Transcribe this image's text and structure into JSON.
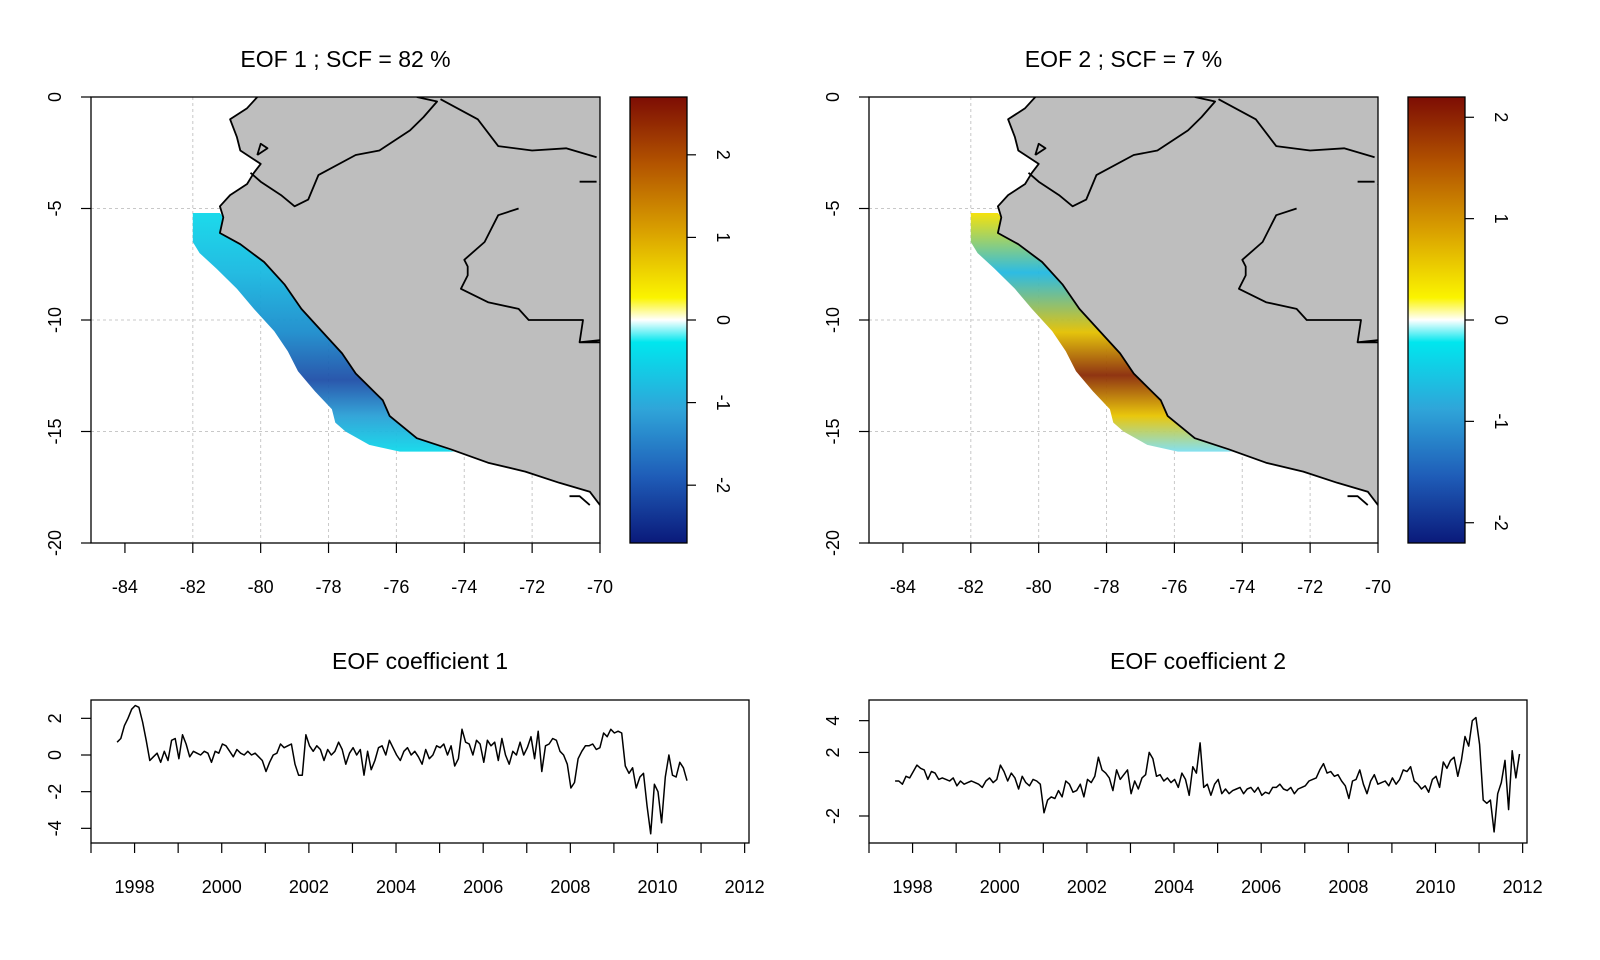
{
  "chart_data": [
    {
      "type": "heatmap",
      "title": "EOF 1 ; SCF =  82 %",
      "xlim": [
        -85,
        -70
      ],
      "ylim": [
        -20,
        0
      ],
      "x_ticks": [
        "-84",
        "-82",
        "-80",
        "-78",
        "-76",
        "-74",
        "-72",
        "-70"
      ],
      "y_ticks": [
        "-20",
        "-15",
        "-10",
        "-5",
        "0"
      ],
      "grid": true,
      "colorbar": {
        "range": [
          -2.7,
          2.7
        ],
        "ticks": [
          "-2",
          "-1",
          "0",
          "1",
          "2"
        ],
        "colors": [
          "#0a1a7a",
          "#1f5db8",
          "#2fa5d9",
          "#00e6ee",
          "#ffffff",
          "#fbf400",
          "#d9a000",
          "#b35400",
          "#7d0d04"
        ]
      },
      "field": {
        "min": -2.3,
        "max": 0,
        "description_values": [
          {
            "lat": -5.5,
            "value": -0.5
          },
          {
            "lat": -8,
            "value": -0.9
          },
          {
            "lat": -10,
            "value": -1.2
          },
          {
            "lat": -12.8,
            "value": -2.2
          },
          {
            "lat": -15.5,
            "value": -0.8
          }
        ]
      }
    },
    {
      "type": "heatmap",
      "title": "EOF 2 ; SCF =  7 %",
      "xlim": [
        -85,
        -70
      ],
      "ylim": [
        -20,
        0
      ],
      "x_ticks": [
        "-84",
        "-82",
        "-80",
        "-78",
        "-76",
        "-74",
        "-72",
        "-70"
      ],
      "y_ticks": [
        "-20",
        "-15",
        "-10",
        "-5",
        "0"
      ],
      "grid": true,
      "colorbar": {
        "range": [
          -2.2,
          2.2
        ],
        "ticks": [
          "-2",
          "-1",
          "0",
          "1",
          "2"
        ],
        "colors": [
          "#0a1a7a",
          "#1f5db8",
          "#2fa5d9",
          "#00e6ee",
          "#ffffff",
          "#fbf400",
          "#d9a000",
          "#b35400",
          "#7d0d04"
        ]
      },
      "field": {
        "min": -1.0,
        "max": 2.0,
        "description_values": [
          {
            "lat": -5.5,
            "value": 0.5
          },
          {
            "lat": -8,
            "value": -0.8
          },
          {
            "lat": -10,
            "value": 0.6
          },
          {
            "lat": -13.5,
            "value": 1.9
          },
          {
            "lat": -15.5,
            "value": 0.4
          }
        ]
      }
    },
    {
      "type": "line",
      "title": "EOF coefficient 1",
      "x_start": 1997.6,
      "x_step": 0.0833,
      "xlim": [
        1997.0,
        2012.1
      ],
      "ylim": [
        -4.8,
        3.0
      ],
      "x_ticks": [
        1998,
        2000,
        2002,
        2004,
        2006,
        2008,
        2010,
        2012
      ],
      "y_ticks": [
        -4,
        -2,
        0,
        2
      ],
      "values": [
        0.7,
        0.9,
        1.6,
        2.0,
        2.5,
        2.7,
        2.6,
        1.8,
        0.8,
        -0.3,
        -0.1,
        0.1,
        -0.4,
        0.2,
        -0.3,
        0.8,
        0.9,
        -0.2,
        1.1,
        0.6,
        -0.1,
        0.2,
        0.1,
        0.0,
        0.2,
        0.1,
        -0.4,
        0.2,
        0.1,
        0.6,
        0.5,
        0.2,
        -0.1,
        0.3,
        0.1,
        0.0,
        0.2,
        0.0,
        0.1,
        -0.1,
        -0.3,
        -0.9,
        -0.4,
        0.0,
        0.1,
        0.6,
        0.4,
        0.5,
        0.6,
        -0.5,
        -1.1,
        -1.1,
        1.1,
        0.5,
        0.2,
        0.5,
        0.3,
        -0.3,
        0.3,
        0.0,
        0.2,
        0.7,
        0.3,
        -0.5,
        0.1,
        0.4,
        0.0,
        0.3,
        -1.1,
        0.2,
        -0.8,
        -0.3,
        0.4,
        0.5,
        0.0,
        0.8,
        0.4,
        0.0,
        -0.3,
        0.2,
        0.4,
        0.0,
        0.2,
        -0.1,
        -0.5,
        0.3,
        -0.2,
        0.0,
        0.5,
        0.4,
        0.6,
        0.0,
        0.5,
        -0.6,
        -0.2,
        1.4,
        0.7,
        0.6,
        0.0,
        0.8,
        0.6,
        -0.4,
        0.8,
        0.5,
        0.7,
        -0.3,
        0.9,
        0.0,
        -0.5,
        0.2,
        0.0,
        0.7,
        0.0,
        0.4,
        1.0,
        -0.2,
        1.3,
        -0.9,
        0.5,
        0.6,
        0.9,
        0.8,
        0.2,
        0.0,
        -0.5,
        -1.8,
        -1.5,
        -0.2,
        0.2,
        0.5,
        0.5,
        0.6,
        0.3,
        0.4,
        1.2,
        1.0,
        1.4,
        1.2,
        1.3,
        1.2,
        -0.6,
        -1.0,
        -0.7,
        -1.8,
        -1.2,
        -1.0,
        -2.8,
        -4.3,
        -1.6,
        -2.0,
        -3.7,
        -1.2,
        0.0,
        -1.1,
        -1.2,
        -0.4,
        -0.7,
        -1.4
      ]
    },
    {
      "type": "line",
      "title": "EOF coefficient 2",
      "x_start": 1997.6,
      "x_step": 0.0833,
      "xlim": [
        1997.0,
        2012.1
      ],
      "ylim": [
        -3.7,
        5.3
      ],
      "x_ticks": [
        1998,
        2000,
        2002,
        2004,
        2006,
        2008,
        2010,
        2012
      ],
      "y_ticks": [
        -2,
        2,
        4
      ],
      "values": [
        0.2,
        0.2,
        0.0,
        0.5,
        0.4,
        0.8,
        1.2,
        1.0,
        0.9,
        0.3,
        0.8,
        0.7,
        0.3,
        0.4,
        0.3,
        0.2,
        0.4,
        -0.1,
        0.2,
        0.0,
        0.1,
        0.2,
        0.1,
        0.0,
        -0.2,
        0.2,
        0.4,
        0.1,
        0.3,
        1.2,
        0.8,
        0.2,
        0.7,
        0.4,
        -0.3,
        0.5,
        0.1,
        -0.1,
        0.3,
        0.2,
        0.0,
        -1.8,
        -1.0,
        -0.8,
        -0.9,
        -0.4,
        -0.8,
        0.2,
        0.0,
        -0.5,
        -0.4,
        0.0,
        -0.8,
        0.3,
        0.1,
        0.5,
        1.7,
        0.9,
        0.7,
        0.4,
        -0.4,
        0.9,
        0.3,
        0.6,
        0.9,
        -0.6,
        0.2,
        -0.3,
        0.4,
        0.6,
        2.0,
        1.6,
        0.5,
        0.6,
        0.2,
        0.4,
        0.1,
        0.3,
        -0.2,
        0.7,
        0.3,
        -0.7,
        1.1,
        0.7,
        2.6,
        -0.2,
        0.0,
        -0.7,
        0.0,
        0.3,
        -0.6,
        -0.3,
        -0.6,
        -0.4,
        -0.3,
        -0.2,
        -0.6,
        -0.3,
        -0.2,
        -0.5,
        -0.2,
        -0.7,
        -0.5,
        -0.6,
        -0.2,
        -0.2,
        0.0,
        -0.3,
        -0.4,
        -0.2,
        -0.6,
        -0.3,
        -0.2,
        -0.1,
        0.2,
        0.3,
        0.4,
        0.9,
        1.3,
        0.7,
        0.8,
        0.5,
        0.6,
        0.2,
        -0.1,
        -0.9,
        0.2,
        0.3,
        0.9,
        0.0,
        -0.6,
        0.2,
        0.6,
        0.0,
        0.1,
        0.2,
        -0.1,
        0.4,
        0.0,
        0.3,
        0.9,
        0.8,
        1.1,
        0.2,
        0.0,
        -0.3,
        -0.1,
        -0.5,
        0.3,
        0.5,
        -0.2,
        1.4,
        1.0,
        1.5,
        1.7,
        0.5,
        1.5,
        3.0,
        2.4,
        4.0,
        4.2,
        2.5,
        -1.0,
        -1.2,
        -1.0,
        -3.0,
        -0.6,
        0.1,
        1.5,
        -1.6,
        2.1,
        0.4,
        1.9
      ]
    }
  ]
}
